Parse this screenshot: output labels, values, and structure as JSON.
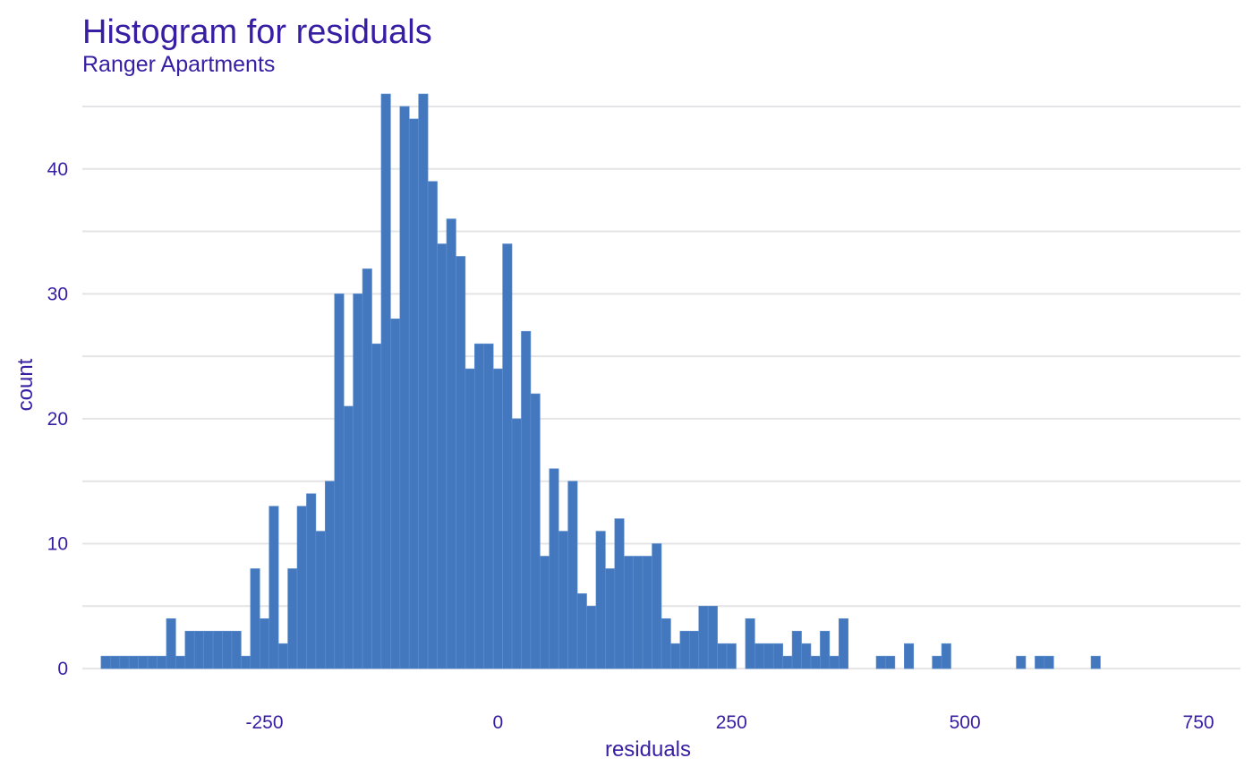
{
  "chart_data": {
    "type": "bar",
    "title": "Histogram for residuals",
    "subtitle": "Ranger Apartments",
    "xlabel": "residuals",
    "ylabel": "count",
    "xlim": [
      -445,
      795
    ],
    "ylim": [
      -2.5,
      46
    ],
    "x_ticks": [
      -250,
      0,
      250,
      500,
      750
    ],
    "x_tick_labels": [
      "-250",
      "0",
      "250",
      "500",
      "750"
    ],
    "y_ticks": [
      0,
      10,
      20,
      30,
      40
    ],
    "y_tick_labels": [
      "0",
      "10",
      "20",
      "30",
      "40"
    ],
    "y_minor_gridlines": [
      5,
      15,
      25,
      35,
      45
    ],
    "grid": true,
    "bin_start": -425,
    "bin_width": 10,
    "values": [
      1,
      1,
      1,
      1,
      1,
      1,
      1,
      4,
      1,
      3,
      3,
      3,
      3,
      3,
      3,
      1,
      8,
      4,
      13,
      2,
      8,
      13,
      14,
      11,
      15,
      30,
      21,
      30,
      32,
      26,
      46,
      28,
      45,
      44,
      46,
      39,
      34,
      36,
      33,
      24,
      26,
      26,
      24,
      34,
      20,
      27,
      22,
      9,
      16,
      11,
      15,
      6,
      5,
      11,
      8,
      12,
      9,
      9,
      9,
      10,
      4,
      2,
      3,
      3,
      5,
      5,
      2,
      2,
      0,
      4,
      2,
      2,
      2,
      1,
      3,
      2,
      1,
      3,
      1,
      4,
      0,
      0,
      0,
      1,
      1,
      0,
      2,
      0,
      0,
      1,
      2,
      0,
      0,
      0,
      0,
      0,
      0,
      0,
      1,
      0,
      1,
      1,
      0,
      0,
      0,
      0,
      1
    ],
    "bar_color": "#4378bf",
    "text_color": "#371ea3",
    "grid_color": "#e4e4e7"
  }
}
